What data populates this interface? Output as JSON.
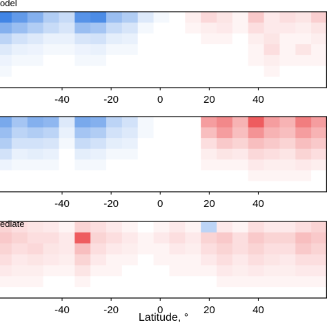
{
  "figure": {
    "xlabel": "Latitude, °"
  },
  "chart_data": [
    {
      "type": "heatmap",
      "title": "odel",
      "xlim": [
        -67,
        68
      ],
      "x_ticks": [
        -40,
        -20,
        0,
        20,
        40
      ],
      "columns": 21,
      "rows": 7,
      "values": [
        [
          -0.85,
          -0.7,
          -0.55,
          -0.35,
          -0.25,
          -0.75,
          -0.8,
          -0.45,
          -0.35,
          -0.15,
          -0.05,
          0.0,
          0.08,
          0.18,
          0.12,
          0.05,
          0.25,
          0.1,
          0.15,
          0.12,
          0.22
        ],
        [
          -0.55,
          -0.45,
          -0.35,
          -0.25,
          -0.18,
          -0.45,
          -0.4,
          -0.25,
          -0.18,
          -0.05,
          0.0,
          0.0,
          0.05,
          0.08,
          0.1,
          0.05,
          0.15,
          0.1,
          0.1,
          0.08,
          0.12
        ],
        [
          -0.3,
          -0.2,
          -0.15,
          -0.1,
          -0.1,
          -0.18,
          -0.2,
          -0.12,
          -0.1,
          0.0,
          0.0,
          0.0,
          0.0,
          0.05,
          0.05,
          0.0,
          0.08,
          0.12,
          0.05,
          0.05,
          0.08
        ],
        [
          -0.15,
          -0.1,
          -0.08,
          -0.05,
          -0.05,
          -0.08,
          -0.1,
          -0.05,
          -0.05,
          0.0,
          0.0,
          0.0,
          0.0,
          0.0,
          0.0,
          0.0,
          0.05,
          0.15,
          0.05,
          0.12,
          0.05
        ],
        [
          -0.08,
          -0.05,
          -0.05,
          0.0,
          0.0,
          -0.05,
          -0.05,
          0.0,
          0.0,
          0.0,
          0.0,
          0.0,
          0.0,
          0.0,
          0.0,
          0.0,
          0.05,
          0.08,
          0.05,
          0.05,
          0.05
        ],
        [
          -0.05,
          0.0,
          0.0,
          0.0,
          0.0,
          0.0,
          0.0,
          0.0,
          0.0,
          0.0,
          0.0,
          0.0,
          0.0,
          0.0,
          0.0,
          0.0,
          0.0,
          0.05,
          0.0,
          0.0,
          0.0
        ],
        [
          0.0,
          0.0,
          0.0,
          0.0,
          0.0,
          0.0,
          0.0,
          0.0,
          0.0,
          0.0,
          0.0,
          0.0,
          0.0,
          0.0,
          0.0,
          0.0,
          0.0,
          0.0,
          0.0,
          0.0,
          0.0
        ]
      ]
    },
    {
      "type": "heatmap",
      "title": "",
      "xlim": [
        -67,
        68
      ],
      "x_ticks": [
        -40,
        -20,
        0,
        20,
        40
      ],
      "columns": 21,
      "rows": 7,
      "values": [
        [
          -0.6,
          -0.4,
          -0.55,
          -0.5,
          -0.15,
          -0.6,
          -0.55,
          -0.3,
          -0.2,
          -0.05,
          0.0,
          0.0,
          0.0,
          0.45,
          0.55,
          0.35,
          0.75,
          0.45,
          0.35,
          0.6,
          0.45
        ],
        [
          -0.45,
          -0.3,
          -0.35,
          -0.3,
          -0.1,
          -0.4,
          -0.35,
          -0.2,
          -0.15,
          -0.05,
          0.0,
          0.0,
          0.0,
          0.3,
          0.45,
          0.3,
          0.5,
          0.35,
          0.3,
          0.45,
          0.35
        ],
        [
          -0.35,
          -0.2,
          -0.2,
          -0.18,
          -0.05,
          -0.25,
          -0.2,
          -0.12,
          -0.1,
          0.0,
          0.0,
          0.0,
          0.0,
          0.15,
          0.25,
          0.2,
          0.3,
          0.25,
          0.2,
          0.3,
          0.25
        ],
        [
          -0.2,
          -0.1,
          -0.12,
          -0.1,
          0.0,
          -0.12,
          -0.1,
          -0.05,
          -0.05,
          0.0,
          0.0,
          0.0,
          0.0,
          0.08,
          0.12,
          0.1,
          0.18,
          0.15,
          0.12,
          0.2,
          0.15
        ],
        [
          -0.08,
          -0.05,
          -0.05,
          -0.05,
          0.0,
          -0.05,
          -0.05,
          0.0,
          0.0,
          0.0,
          0.0,
          0.0,
          0.0,
          0.05,
          0.05,
          0.05,
          0.1,
          0.08,
          0.08,
          0.1,
          0.08
        ],
        [
          0.0,
          0.0,
          0.0,
          0.0,
          0.0,
          0.0,
          0.0,
          0.0,
          0.0,
          0.0,
          0.0,
          0.0,
          0.0,
          0.0,
          0.0,
          0.0,
          0.05,
          0.05,
          0.05,
          0.05,
          0.0
        ],
        [
          0.0,
          0.0,
          0.0,
          0.0,
          0.0,
          0.0,
          0.0,
          0.0,
          0.0,
          0.0,
          0.0,
          0.0,
          0.0,
          0.0,
          0.0,
          0.0,
          0.0,
          0.0,
          0.0,
          0.0,
          0.0
        ]
      ]
    },
    {
      "type": "heatmap",
      "title": "ediate",
      "xlim": [
        -67,
        68
      ],
      "x_ticks": [
        -40,
        -20,
        0,
        20,
        40
      ],
      "columns": 21,
      "rows": 7,
      "values": [
        [
          0.2,
          0.15,
          0.12,
          0.1,
          0.05,
          0.2,
          0.15,
          0.1,
          0.05,
          0.0,
          0.05,
          0.1,
          0.05,
          -0.3,
          0.1,
          0.05,
          0.15,
          0.1,
          0.1,
          0.15,
          0.2
        ],
        [
          0.25,
          0.2,
          0.15,
          0.15,
          0.1,
          0.75,
          0.2,
          0.15,
          0.1,
          0.05,
          0.1,
          0.15,
          0.1,
          0.2,
          0.25,
          0.15,
          0.25,
          0.2,
          0.2,
          0.3,
          0.25
        ],
        [
          0.2,
          0.15,
          0.18,
          0.12,
          0.1,
          0.3,
          0.15,
          0.1,
          0.08,
          0.05,
          0.05,
          0.1,
          0.08,
          0.15,
          0.2,
          0.15,
          0.2,
          0.15,
          0.15,
          0.25,
          0.2
        ],
        [
          0.15,
          0.1,
          0.12,
          0.1,
          0.08,
          0.2,
          0.1,
          0.05,
          0.05,
          0.0,
          0.05,
          0.05,
          0.05,
          0.1,
          0.15,
          0.1,
          0.15,
          0.12,
          0.1,
          0.15,
          0.15
        ],
        [
          0.1,
          0.08,
          0.08,
          0.05,
          0.05,
          0.12,
          0.05,
          0.05,
          0.0,
          0.0,
          0.0,
          0.05,
          0.05,
          0.05,
          0.1,
          0.08,
          0.1,
          0.08,
          0.08,
          0.1,
          0.1
        ],
        [
          0.05,
          0.05,
          0.05,
          0.0,
          0.0,
          0.05,
          0.0,
          0.0,
          0.0,
          0.0,
          0.0,
          0.0,
          0.0,
          0.0,
          0.05,
          0.05,
          0.05,
          0.05,
          0.05,
          0.05,
          0.05
        ],
        [
          0.0,
          0.0,
          0.0,
          0.0,
          0.0,
          0.0,
          0.0,
          0.0,
          0.0,
          0.0,
          0.0,
          0.0,
          0.0,
          0.0,
          0.0,
          0.0,
          0.0,
          0.0,
          0.0,
          0.0,
          0.0
        ]
      ]
    }
  ],
  "colors": {
    "positive": "#e8262a",
    "negative": "#1f6fe0",
    "neutral": "#ffffff",
    "axis": "#000000"
  }
}
